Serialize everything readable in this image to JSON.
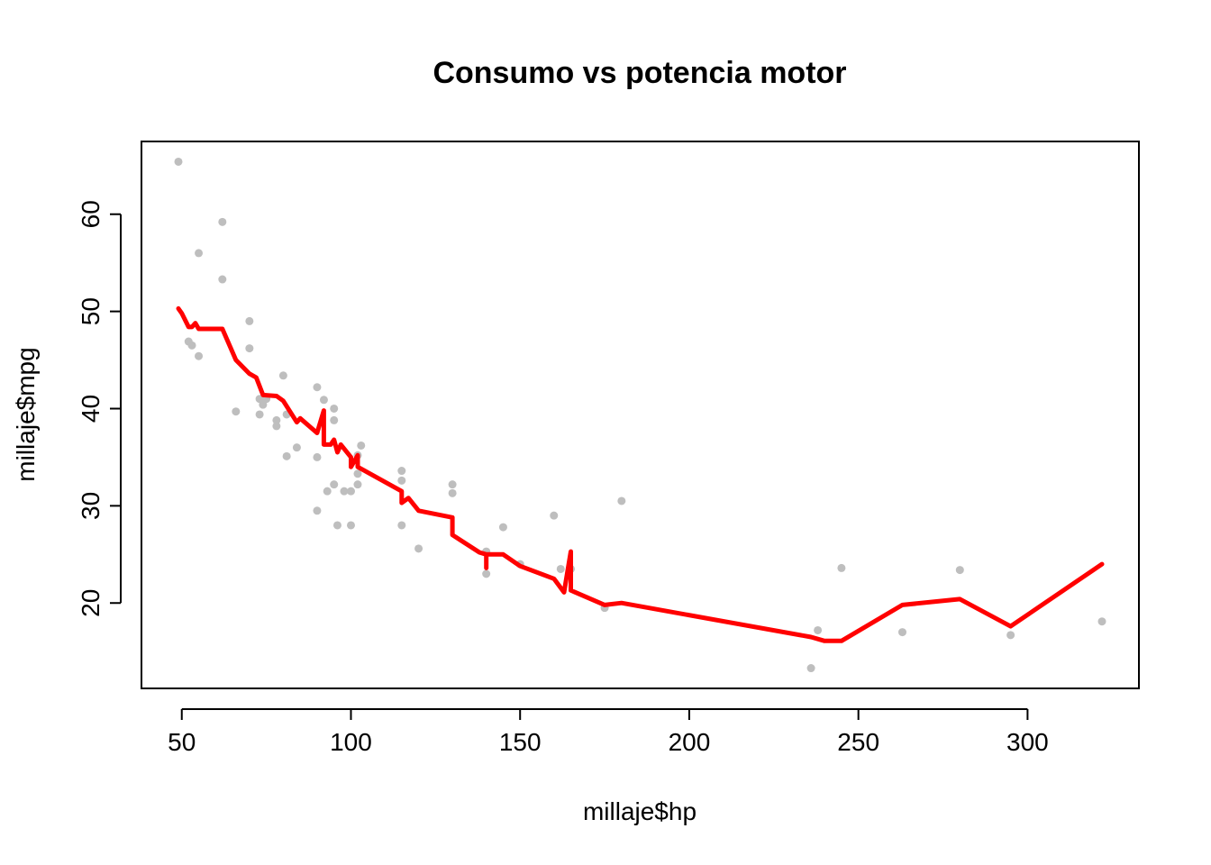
{
  "chart_data": {
    "type": "scatter",
    "title": "Consumo vs potencia motor",
    "xlabel": "millaje$hp",
    "ylabel": "millaje$mpg",
    "xlim": [
      49,
      322
    ],
    "ylim": [
      13.3,
      65.4
    ],
    "xticks": [
      50,
      100,
      150,
      200,
      250,
      300
    ],
    "yticks": [
      20,
      30,
      40,
      50,
      60
    ],
    "grid": false,
    "colors": {
      "points": "#bebebe",
      "line": "#ff0000"
    },
    "series": [
      {
        "type": "scatter",
        "points": [
          [
            49,
            65.4
          ],
          [
            52,
            46.9
          ],
          [
            53,
            46.5
          ],
          [
            55,
            56.0
          ],
          [
            55,
            45.4
          ],
          [
            62,
            59.2
          ],
          [
            62,
            53.3
          ],
          [
            66,
            39.7
          ],
          [
            70,
            49.0
          ],
          [
            70,
            46.2
          ],
          [
            73,
            41.0
          ],
          [
            73,
            39.4
          ],
          [
            74,
            40.4
          ],
          [
            75,
            41.0
          ],
          [
            78,
            38.8
          ],
          [
            78,
            38.2
          ],
          [
            80,
            43.4
          ],
          [
            81,
            35.1
          ],
          [
            81,
            39.4
          ],
          [
            84,
            36.0
          ],
          [
            90,
            42.2
          ],
          [
            90,
            35.0
          ],
          [
            90,
            29.5
          ],
          [
            92,
            40.9
          ],
          [
            93,
            31.5
          ],
          [
            95,
            40.0
          ],
          [
            95,
            38.8
          ],
          [
            95,
            32.2
          ],
          [
            96,
            28.0
          ],
          [
            98,
            31.5
          ],
          [
            100,
            31.5
          ],
          [
            100,
            28.0
          ],
          [
            102,
            33.3
          ],
          [
            102,
            32.2
          ],
          [
            102,
            35.2
          ],
          [
            103,
            36.2
          ],
          [
            115,
            33.6
          ],
          [
            115,
            32.6
          ],
          [
            115,
            28.0
          ],
          [
            120,
            25.6
          ],
          [
            130,
            32.2
          ],
          [
            130,
            31.3
          ],
          [
            140,
            25.3
          ],
          [
            140,
            23.0
          ],
          [
            145,
            27.8
          ],
          [
            150,
            24.0
          ],
          [
            160,
            29.0
          ],
          [
            162,
            23.5
          ],
          [
            165,
            23.5
          ],
          [
            175,
            19.5
          ],
          [
            180,
            30.5
          ],
          [
            236,
            13.3
          ],
          [
            238,
            17.2
          ],
          [
            245,
            23.6
          ],
          [
            263,
            17.0
          ],
          [
            280,
            23.4
          ],
          [
            295,
            16.7
          ],
          [
            322,
            18.1
          ]
        ]
      },
      {
        "type": "line",
        "points": [
          [
            49,
            50.3
          ],
          [
            50,
            49.8
          ],
          [
            52,
            48.4
          ],
          [
            53,
            48.4
          ],
          [
            54,
            48.8
          ],
          [
            55,
            48.2
          ],
          [
            62,
            48.2
          ],
          [
            66,
            45.0
          ],
          [
            70,
            43.6
          ],
          [
            72,
            43.2
          ],
          [
            74,
            41.4
          ],
          [
            78,
            41.3
          ],
          [
            80,
            40.8
          ],
          [
            84,
            38.6
          ],
          [
            85,
            39.0
          ],
          [
            90,
            37.5
          ],
          [
            92,
            39.8
          ],
          [
            92,
            36.3
          ],
          [
            94,
            36.3
          ],
          [
            95,
            36.8
          ],
          [
            96,
            35.5
          ],
          [
            97,
            36.3
          ],
          [
            100,
            35.0
          ],
          [
            100,
            34.0
          ],
          [
            102,
            35.2
          ],
          [
            102,
            34.0
          ],
          [
            115,
            31.5
          ],
          [
            115,
            30.3
          ],
          [
            117,
            30.8
          ],
          [
            120,
            29.5
          ],
          [
            130,
            28.8
          ],
          [
            130,
            27.0
          ],
          [
            138,
            25.2
          ],
          [
            140,
            25.0
          ],
          [
            140,
            23.6
          ],
          [
            140,
            25.0
          ],
          [
            145,
            25.0
          ],
          [
            150,
            23.8
          ],
          [
            160,
            22.5
          ],
          [
            163,
            21.1
          ],
          [
            165,
            25.3
          ],
          [
            165,
            21.3
          ],
          [
            175,
            19.8
          ],
          [
            180,
            20.0
          ],
          [
            236,
            16.5
          ],
          [
            240,
            16.1
          ],
          [
            245,
            16.1
          ],
          [
            263,
            19.8
          ],
          [
            280,
            20.4
          ],
          [
            295,
            17.6
          ],
          [
            322,
            24.0
          ]
        ]
      }
    ]
  }
}
